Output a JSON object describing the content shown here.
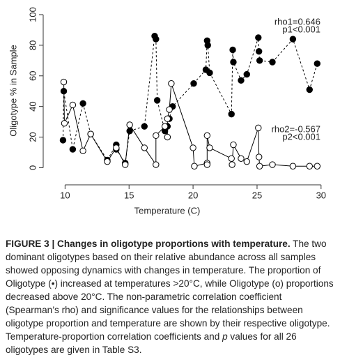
{
  "chart_data": {
    "type": "line",
    "xlabel": "Temperature (C)",
    "ylabel": "Oligotype % in Sample",
    "xlim": [
      9,
      30.5
    ],
    "ylim": [
      -8,
      105
    ],
    "xticks": [
      10,
      15,
      20,
      25,
      30
    ],
    "yticks": [
      0,
      20,
      40,
      60,
      80,
      100
    ],
    "annotations": [
      "rho1=0.646",
      "p1<0.001",
      "rho2=-0.567",
      "p2<0.001"
    ],
    "series": [
      {
        "color": "#000000",
        "marker": "filled",
        "line_style": "dashed",
        "x": [
          9.84,
          9.9,
          10.6,
          11.4,
          12.0,
          13.3,
          14.0,
          14.0,
          14.7,
          15.05,
          16.2,
          17.0,
          17.1,
          17.2,
          17.8,
          18.0,
          18.15,
          18.4,
          20.05,
          21.0,
          21.1,
          21.15,
          21.3,
          23.0,
          23.1,
          23.15,
          23.75,
          24.2,
          25.1,
          25.15,
          25.2,
          26.2,
          27.8,
          29.1,
          29.7
        ],
        "values": [
          18,
          50,
          12,
          42,
          22,
          5,
          15,
          12,
          3,
          24,
          27,
          86,
          84,
          44,
          24,
          27,
          32,
          40,
          55,
          64,
          83,
          80,
          62,
          35,
          77,
          69,
          57,
          61,
          85,
          76,
          70,
          69,
          84,
          51,
          68
        ]
      },
      {
        "color": "#000000",
        "marker": "open",
        "line_style": "solid",
        "x": [
          9.9,
          9.95,
          10.6,
          11.4,
          12.0,
          13.3,
          14.0,
          14.7,
          15.05,
          16.2,
          17.1,
          17.1,
          17.8,
          18.0,
          18.0,
          18.15,
          18.3,
          20.0,
          20.1,
          21.1,
          21.1,
          21.1,
          21.3,
          23.0,
          23.05,
          23.15,
          23.75,
          24.2,
          25.1,
          25.15,
          25.2,
          26.2,
          27.8,
          29.1,
          29.7
        ],
        "values": [
          56,
          29,
          41,
          11,
          22,
          4,
          13,
          2,
          28,
          13,
          2,
          21,
          27,
          20,
          32,
          38,
          55,
          13,
          1,
          3,
          2,
          21,
          13,
          6,
          2,
          15,
          6,
          4,
          26,
          7,
          1,
          2,
          1,
          1,
          1
        ]
      }
    ]
  },
  "caption": {
    "label": "FIGURE 3 | Changes in oligotype proportions with temperature.",
    "text_1": "The two dominant oligotypes based on their relative abundance across all samples showed opposing dynamics with changes in temperature. The proportion of Oligotype (•) increased at temperatures >20°C, while Oligotype (ο) proportions decreased above 20°C. The non-parametric correlation coefficient (Spearman’s rho) and significance values for the relationships between oligotype proportion and temperature are shown by their respective oligotype. Temperature-proportion correlation coefficients and",
    "p": "p",
    "text_2": "values for all 26 oligotypes are given in Table S3."
  }
}
